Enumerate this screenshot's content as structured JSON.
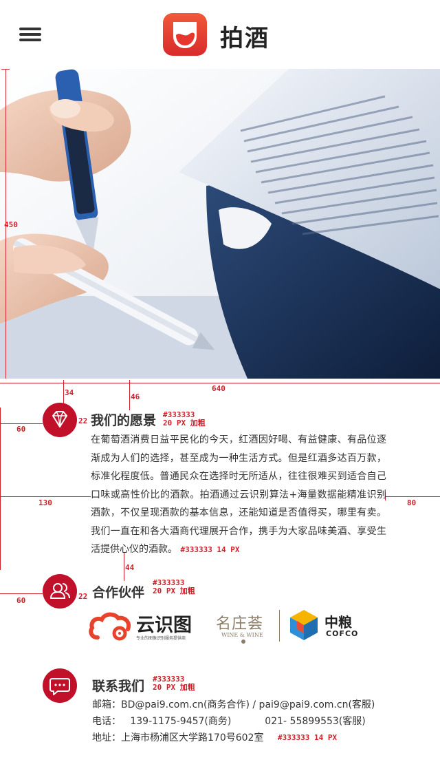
{
  "header": {
    "brand": "拍酒"
  },
  "annotations": {
    "hero_height": "450",
    "width": "640",
    "gap_34": "34",
    "gap_46": "46",
    "left_60a": "60",
    "icon_gap_a": "22",
    "left_130": "130",
    "right_80": "80",
    "gap_44": "44",
    "left_60b": "60",
    "icon_gap_b": "22",
    "spec_color": "#333333",
    "spec_title": "20 PX 加粗",
    "spec_body": "#333333 14 PX"
  },
  "vision": {
    "title": "我们的愿景",
    "body": "在葡萄酒消费日益平民化的今天，红酒因好喝、有益健康、有品位逐渐成为人们的选择，甚至成为一种生活方式。但是红酒多达百万款，标准化程度低。普通民众在选择时无所适从，往往很难买到适合自己口味或高性价比的酒款。拍酒通过云识别算法+海量数据能精准识别酒款，不仅呈现酒款的基本信息，还能知道是否值得买，哪里有卖。我们一直在和各大酒商代理展开合作，携手为大家品味美酒、享受生活提供心仪的酒款。"
  },
  "partners": {
    "title": "合作伙伴",
    "items": [
      {
        "name": "云识图",
        "tagline": "专业的图像识别服务提供商"
      },
      {
        "name": "名庄荟",
        "sub": "WINE & WINE"
      },
      {
        "name": "中粮",
        "sub": "COFCO"
      }
    ]
  },
  "contact": {
    "title": "联系我们",
    "email": "邮箱：BD@pai9.com.cn(商务合作) / pai9@pai9.com.cn(客服)",
    "phone": "电话：   139-1175-9457(商务)           021- 55899553(客服)",
    "address": "地址：上海市杨浦区大学路170号602室"
  },
  "colors": {
    "accent": "#c0102a",
    "annotation": "#d0202a",
    "logo": "#e8362f"
  }
}
